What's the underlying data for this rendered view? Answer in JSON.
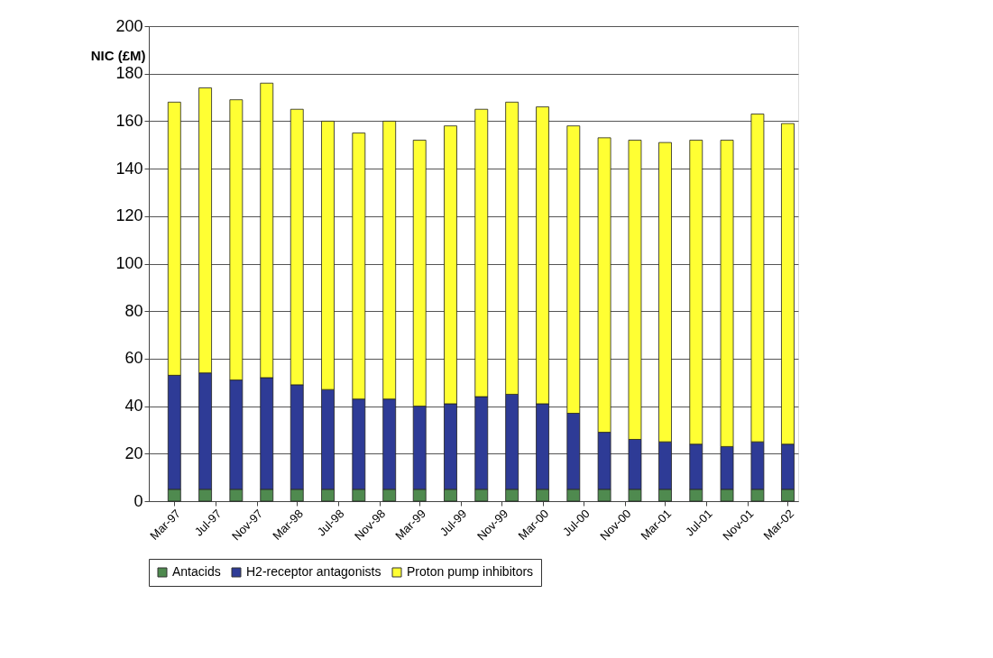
{
  "chart_data": {
    "type": "bar",
    "stacked": true,
    "ylabel": "NIC (£M)",
    "x": [
      "1997-03",
      "1997-06",
      "1997-09",
      "1997-12",
      "1998-03",
      "1998-06",
      "1998-09",
      "1998-12",
      "1999-03",
      "1999-06",
      "1999-09",
      "1999-12",
      "2000-03",
      "2000-06",
      "2000-09",
      "2000-12",
      "2001-03",
      "2001-06",
      "2001-09",
      "2001-12",
      "2002-03"
    ],
    "series": [
      {
        "name": "Antacids",
        "color": "#4f8a4f",
        "values": [
          5,
          5,
          5,
          5,
          5,
          5,
          5,
          5,
          5,
          5,
          5,
          5,
          5,
          5,
          5,
          5,
          5,
          5,
          5,
          5,
          5
        ]
      },
      {
        "name": "H2-receptor antagonists",
        "color": "#2e3b96",
        "values": [
          48,
          49,
          46,
          47,
          44,
          42,
          38,
          38,
          35,
          36,
          39,
          40,
          36,
          32,
          24,
          21,
          20,
          19,
          18,
          20,
          19
        ]
      },
      {
        "name": "Proton pump inhibitors",
        "color": "#ffff33",
        "values": [
          115,
          120,
          118,
          124,
          116,
          113,
          112,
          117,
          112,
          117,
          121,
          123,
          125,
          121,
          124,
          126,
          126,
          128,
          129,
          138,
          135
        ]
      }
    ],
    "xlim": [
      "1996-12-15",
      "2002-04-01"
    ],
    "xticks": [
      {
        "value": "1997-03",
        "label": "Mar-97"
      },
      {
        "value": "1997-07",
        "label": "Jul-97"
      },
      {
        "value": "1997-11",
        "label": "Nov-97"
      },
      {
        "value": "1998-03",
        "label": "Mar-98"
      },
      {
        "value": "1998-07",
        "label": "Jul-98"
      },
      {
        "value": "1998-11",
        "label": "Nov-98"
      },
      {
        "value": "1999-03",
        "label": "Mar-99"
      },
      {
        "value": "1999-07",
        "label": "Jul-99"
      },
      {
        "value": "1999-11",
        "label": "Nov-99"
      },
      {
        "value": "2000-03",
        "label": "Mar-00"
      },
      {
        "value": "2000-07",
        "label": "Jul-00"
      },
      {
        "value": "2000-11",
        "label": "Nov-00"
      },
      {
        "value": "2001-03",
        "label": "Mar-01"
      },
      {
        "value": "2001-07",
        "label": "Jul-01"
      },
      {
        "value": "2001-11",
        "label": "Nov-01"
      },
      {
        "value": "2002-03",
        "label": "Mar-02"
      }
    ],
    "ylim": [
      0,
      200
    ],
    "yticks": [
      0,
      20,
      40,
      60,
      80,
      100,
      120,
      140,
      160,
      180,
      200
    ],
    "grid": "y",
    "legend": "bottom"
  }
}
